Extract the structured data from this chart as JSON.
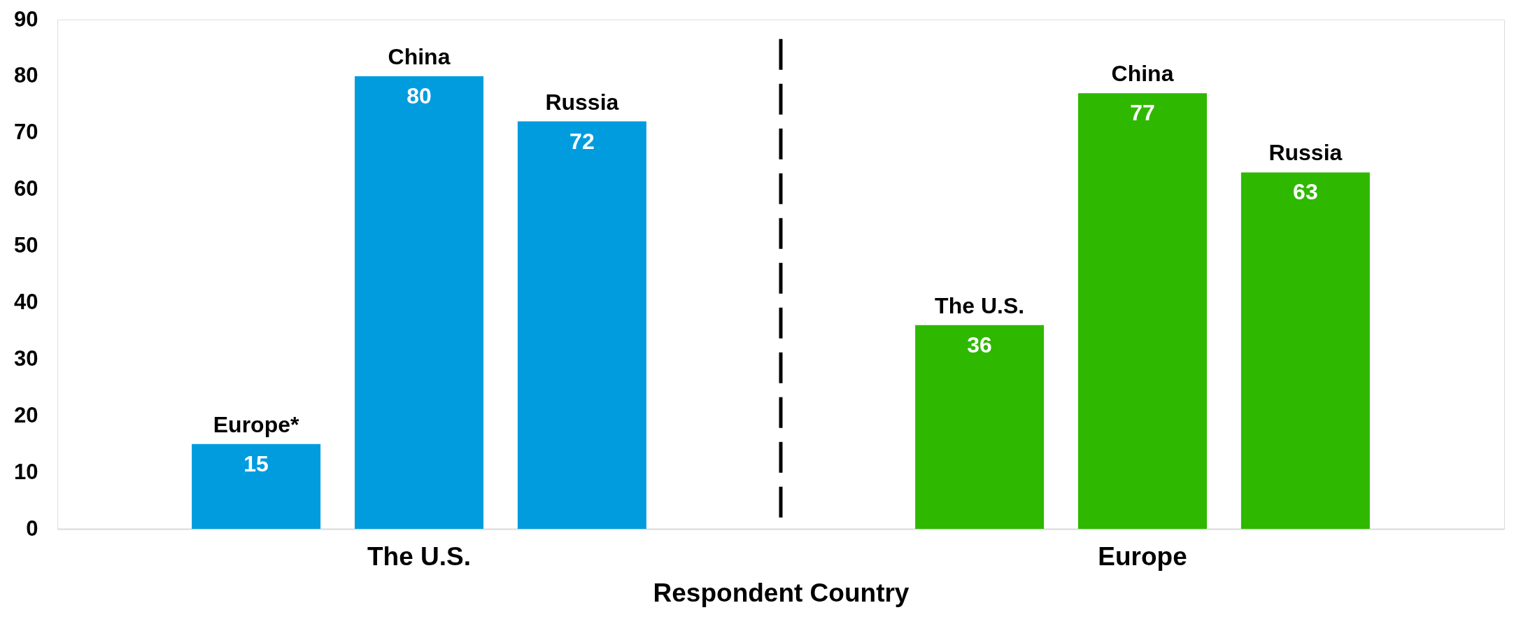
{
  "chart_data": {
    "type": "bar",
    "xlabel": "Respondent Country",
    "categories": [
      "The U.S.",
      "Europe"
    ],
    "series": [
      {
        "values": [
          15,
          36
        ],
        "colors": [
          "#009cde",
          "#2eb800"
        ]
      },
      {
        "values": [
          80,
          77
        ],
        "colors": [
          "#009cde",
          "#2eb800"
        ]
      },
      {
        "values": [
          72,
          63
        ],
        "colors": [
          "#009cde",
          "#2eb800"
        ]
      }
    ],
    "ylim": [
      0,
      90
    ],
    "yticks": [
      0,
      10,
      20,
      30,
      40,
      50,
      60,
      70,
      80,
      90
    ],
    "data_labels": true,
    "annotations": [
      "Europe*",
      "China",
      "Russia",
      "The U.S.",
      "China",
      "Russia"
    ]
  }
}
